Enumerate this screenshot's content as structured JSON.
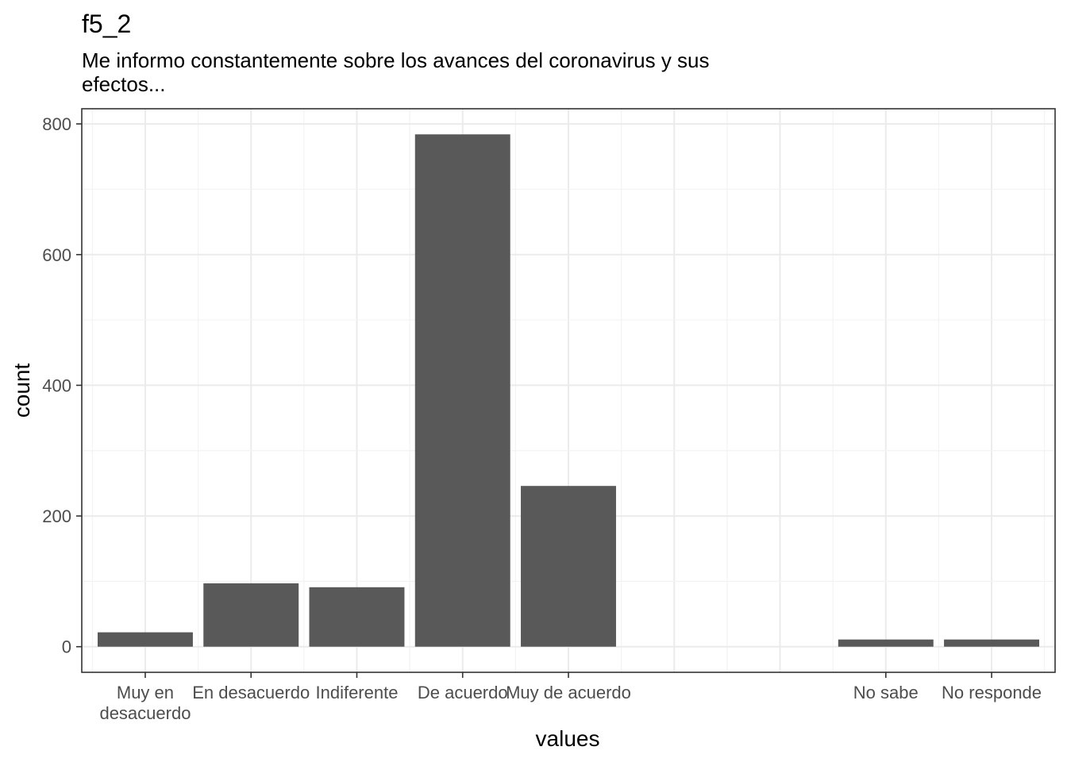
{
  "chart_data": {
    "type": "bar",
    "title": "f5_2",
    "subtitle": [
      "Me informo constantemente sobre los avances del coronavirus y sus",
      "efectos..."
    ],
    "xlabel": "values",
    "ylabel": "count",
    "categories": [
      {
        "label": [
          "Muy en",
          "desacuerdo"
        ],
        "position": 1,
        "value": 22
      },
      {
        "label": [
          "En desacuerdo"
        ],
        "position": 2,
        "value": 97
      },
      {
        "label": [
          "Indiferente"
        ],
        "position": 3,
        "value": 91
      },
      {
        "label": [
          "De acuerdo"
        ],
        "position": 4,
        "value": 784
      },
      {
        "label": [
          "Muy de acuerdo"
        ],
        "position": 5,
        "value": 246
      },
      {
        "label": [
          "No sabe"
        ],
        "position": 8,
        "value": 11
      },
      {
        "label": [
          "No responde"
        ],
        "position": 9,
        "value": 11
      }
    ],
    "xlim": [
      0.4,
      9.6
    ],
    "ylim": [
      -39.2,
      823.2
    ],
    "yticks": [
      0,
      200,
      400,
      600,
      800
    ],
    "grid": true,
    "colors": {
      "bar": "#595959",
      "grid": "#ebebeb",
      "border": "#333333"
    }
  }
}
